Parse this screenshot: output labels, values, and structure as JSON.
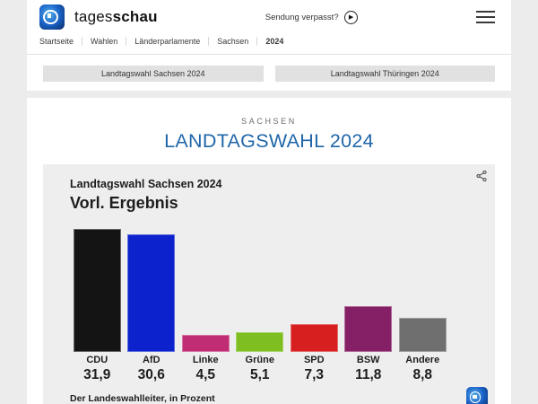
{
  "header": {
    "brand_regular": "tages",
    "brand_bold": "schau",
    "sendung_verpasst": "Sendung verpasst?",
    "play_glyph": "▶",
    "breadcrumbs": [
      "Startseite",
      "Wahlen",
      "Länderparlamente",
      "Sachsen",
      "2024"
    ]
  },
  "nav_buttons": [
    {
      "label": "Landtagswahl Sachsen 2024"
    },
    {
      "label": "Landtagswahl Thüringen 2024"
    }
  ],
  "page": {
    "kicker": "SACHSEN",
    "title": "LANDTAGSWAHL 2024"
  },
  "chart_data": {
    "type": "bar",
    "title": "Landtagswahl Sachsen 2024",
    "subtitle": "Vorl. Ergebnis",
    "categories": [
      "CDU",
      "AfD",
      "Linke",
      "Grüne",
      "SPD",
      "BSW",
      "Andere"
    ],
    "values": [
      31.9,
      30.6,
      4.5,
      5.1,
      7.3,
      11.8,
      8.8
    ],
    "value_labels": [
      "31,9",
      "30,6",
      "4,5",
      "5,1",
      "7,3",
      "11,8",
      "8,8"
    ],
    "colors": [
      "#141414",
      "#0b22cc",
      "#c02d74",
      "#7ebe21",
      "#d71f1f",
      "#862066",
      "#6f6f6f"
    ],
    "ylim": [
      0,
      32
    ],
    "unit": "Prozent",
    "source": "Der Landeswahlleiter, in Prozent",
    "legend": "none",
    "grid": false
  },
  "colors": {
    "accent_blue_title": "#2066a8",
    "page_bg": "#ececec",
    "card_bg": "#eeeeee",
    "button_bg": "#e1e1e1"
  },
  "icons": {
    "brand_logo": "tagesschau-globe-icon",
    "share": "share-icon",
    "menu": "hamburger-menu-icon",
    "play": "play-circle-icon"
  }
}
